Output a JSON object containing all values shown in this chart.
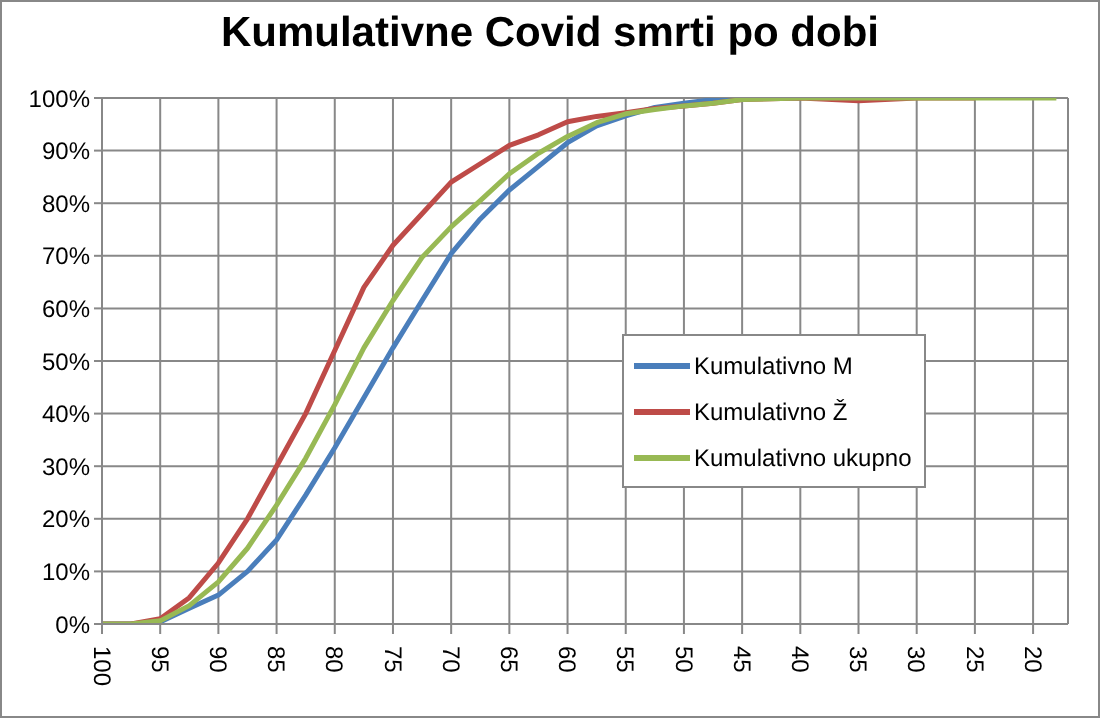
{
  "chart_data": {
    "type": "line",
    "title": "Kumulativne Covid smrti po dobi",
    "x": [
      100,
      97.5,
      95,
      92.5,
      90,
      87.5,
      85,
      82.5,
      80,
      77.5,
      75,
      72.5,
      70,
      67.5,
      65,
      62.5,
      60,
      57.5,
      55,
      52.5,
      50,
      47.5,
      45,
      40,
      35,
      30,
      25,
      20,
      18
    ],
    "series": [
      {
        "name": "Kumulativno M",
        "color": "#4a7ebb",
        "values": [
          0,
          0,
          0.4,
          3,
          5.5,
          10,
          16,
          24.5,
          33.5,
          43,
          52.5,
          61.5,
          70.4,
          77,
          82.5,
          87,
          91.5,
          94.7,
          96.6,
          98.2,
          99,
          99.7,
          100,
          100,
          null,
          null,
          null,
          null,
          null
        ]
      },
      {
        "name": "Kumulativno Ž",
        "color": "#be4b48",
        "values": [
          0,
          0,
          1,
          5,
          11.6,
          20,
          30,
          40,
          52,
          64,
          72,
          78,
          84,
          87.5,
          91,
          93,
          95.5,
          96.5,
          97.2,
          98,
          98.5,
          99,
          99.7,
          100,
          99.5,
          100,
          100,
          null,
          null
        ]
      },
      {
        "name": "Kumulativno ukupno",
        "color": "#98b954",
        "values": [
          0,
          0,
          0.6,
          3.5,
          8,
          14.4,
          22.6,
          31.5,
          41.7,
          52.5,
          61.5,
          69.7,
          75.5,
          80.5,
          85.6,
          89.5,
          92.7,
          95.3,
          97,
          97.8,
          98.5,
          99,
          99.7,
          100,
          100,
          100,
          100,
          100,
          100
        ]
      }
    ],
    "xlim": [
      100,
      17
    ],
    "xticks": [
      100,
      95,
      90,
      85,
      80,
      75,
      70,
      65,
      60,
      55,
      50,
      45,
      40,
      35,
      30,
      25,
      20
    ],
    "ylim": [
      0,
      100
    ],
    "yticks": [
      {
        "value": 0,
        "label": "0%"
      },
      {
        "value": 10,
        "label": "10%"
      },
      {
        "value": 20,
        "label": "20%"
      },
      {
        "value": 30,
        "label": "30%"
      },
      {
        "value": 40,
        "label": "40%"
      },
      {
        "value": 50,
        "label": "50%"
      },
      {
        "value": 60,
        "label": "60%"
      },
      {
        "value": 70,
        "label": "70%"
      },
      {
        "value": 80,
        "label": "80%"
      },
      {
        "value": 90,
        "label": "90%"
      },
      {
        "value": 100,
        "label": "100%"
      }
    ],
    "grid": true,
    "legend": "right",
    "marker": "none",
    "line_style": "solid"
  }
}
